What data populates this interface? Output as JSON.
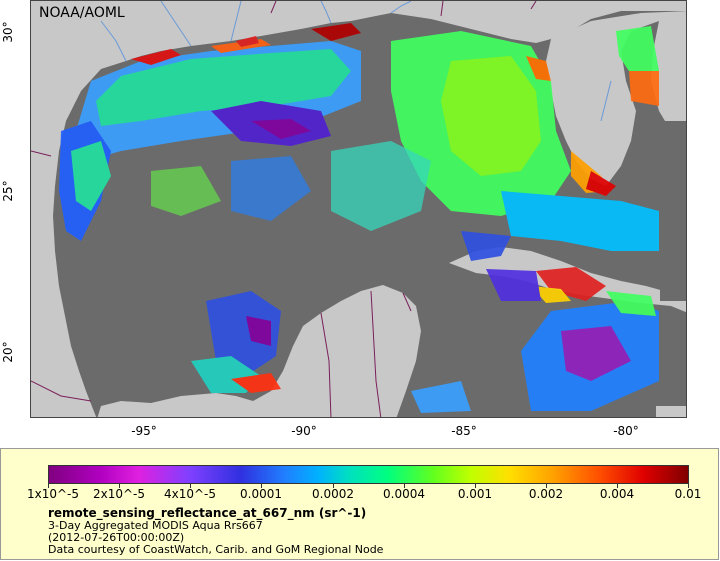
{
  "map": {
    "credit": "NOAA/AOML",
    "x_ticks": [
      "-95°",
      "-90°",
      "-85°",
      "-80°"
    ],
    "y_ticks": [
      "30°",
      "25°",
      "20°"
    ],
    "colors": {
      "ocean_no_data": "#6b6b6b",
      "land": "#c8c8c8",
      "borders": "#7a1f5a",
      "rivers": "#6a9ad8"
    }
  },
  "legend": {
    "colorbar_labels": [
      "1x10^-5",
      "2x10^-5",
      "4x10^-5",
      "0.0001",
      "0.0002",
      "0.0004",
      "0.001",
      "0.002",
      "0.004",
      "0.01"
    ],
    "title": "remote_sensing_reflectance_at_667_nm (sr^-1)",
    "subtitle_line1": "3-Day Aggregated MODIS Aqua Rrs667",
    "subtitle_line2": "(2012-07-26T00:00:00Z)",
    "subtitle_line3": "Data courtesy of CoastWatch, Carib. and GoM Regional Node"
  }
}
